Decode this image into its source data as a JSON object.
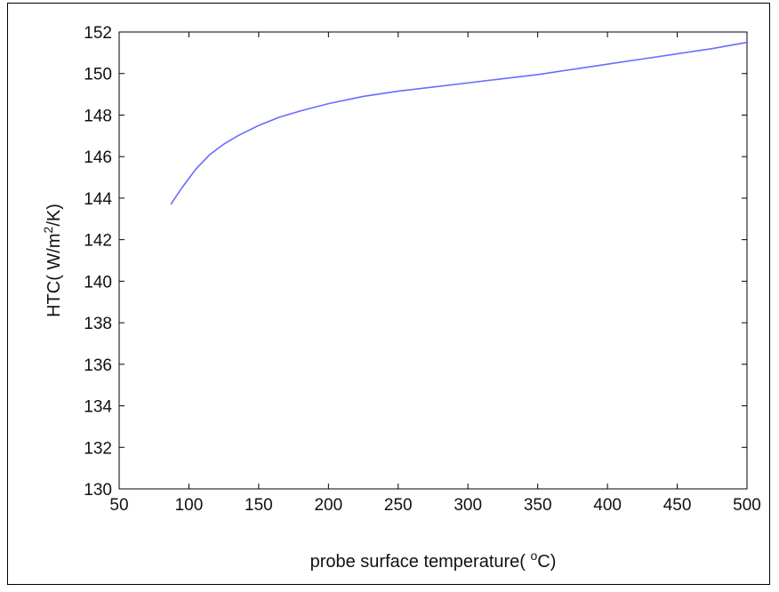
{
  "chart_data": {
    "type": "line",
    "title": "",
    "xlabel": "probe surface temperature( °C)",
    "xlabel_parts": {
      "pre": "probe surface temperature( ",
      "sup": "o",
      "post": "C)"
    },
    "ylabel": "HTC( W/m²/K)",
    "ylabel_parts": {
      "pre": "HTC( W/m",
      "sup": "2",
      "post": "/K)"
    },
    "xlim": [
      50,
      500
    ],
    "ylim": [
      130,
      152
    ],
    "xticks": [
      50,
      100,
      150,
      200,
      250,
      300,
      350,
      400,
      450,
      500
    ],
    "yticks": [
      130,
      132,
      134,
      136,
      138,
      140,
      142,
      144,
      146,
      148,
      150,
      152
    ],
    "grid": false,
    "line_color": "#6b6bff",
    "series": [
      {
        "x": [
          87,
          95,
          105,
          115,
          125,
          135,
          150,
          165,
          180,
          200,
          225,
          250,
          275,
          300,
          325,
          350,
          375,
          400,
          425,
          450,
          475,
          500
        ],
        "y": [
          143.7,
          144.5,
          145.4,
          146.1,
          146.6,
          147.0,
          147.5,
          147.9,
          148.2,
          148.55,
          148.9,
          149.15,
          149.35,
          149.55,
          149.75,
          149.95,
          150.2,
          150.45,
          150.7,
          150.95,
          151.2,
          151.5
        ]
      }
    ]
  }
}
